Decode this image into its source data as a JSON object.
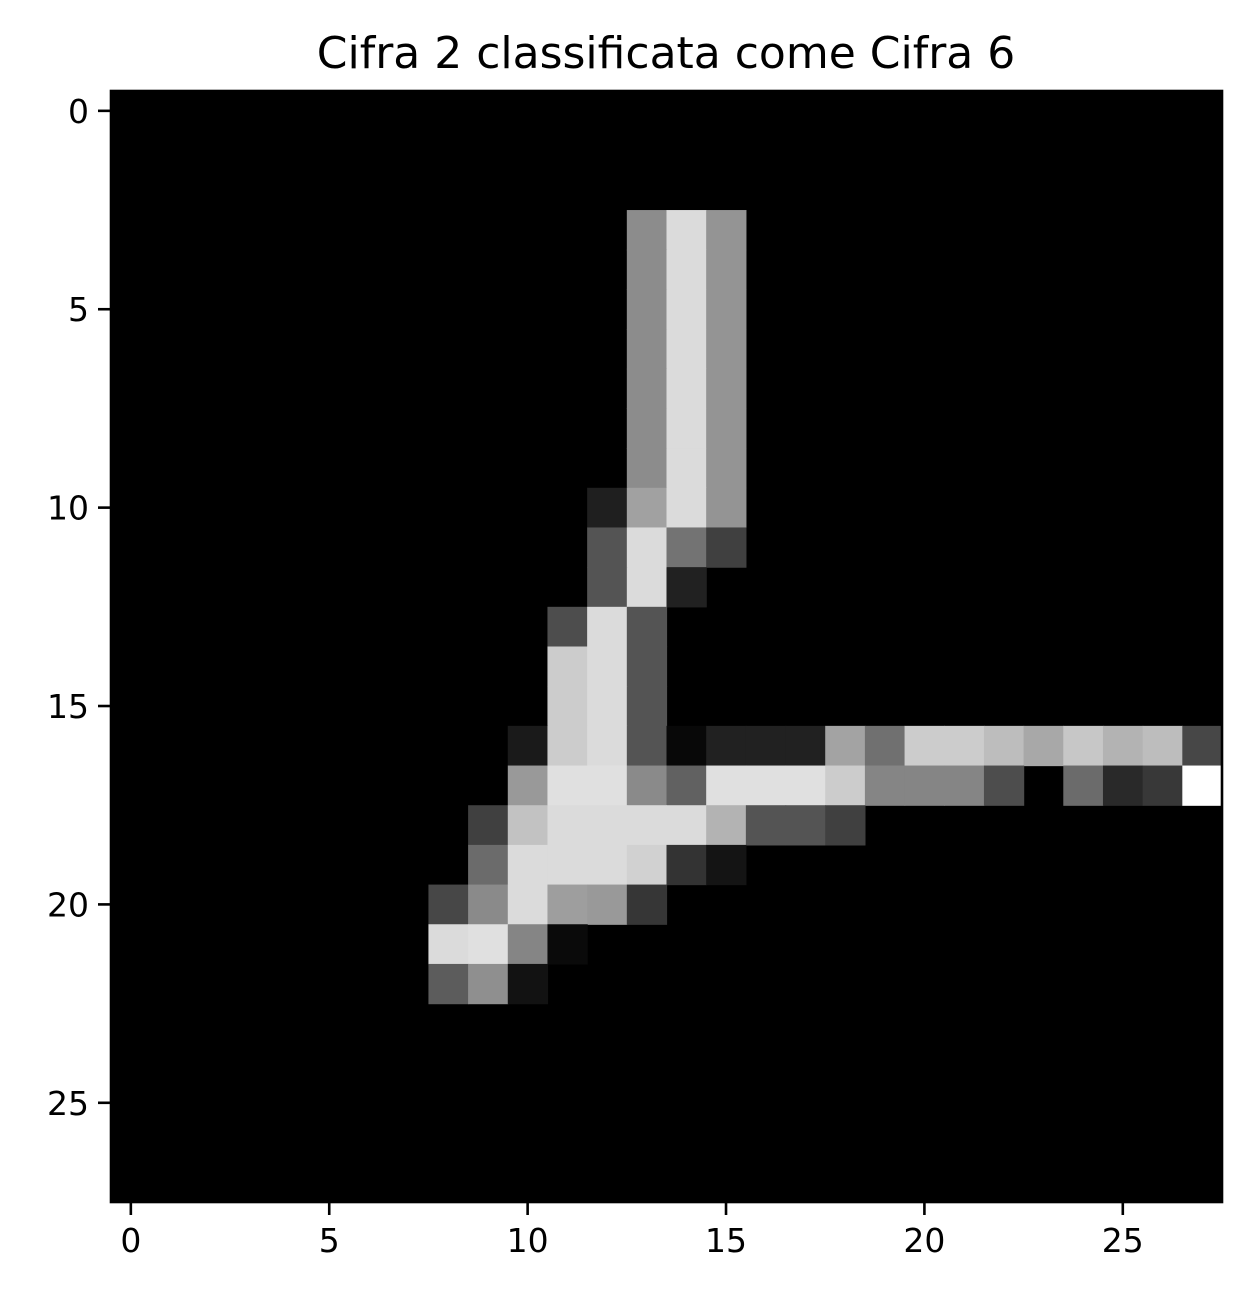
{
  "chart_data": {
    "type": "heatmap",
    "title": "Cifra 2 classificata come Cifra 6",
    "xlabel": "",
    "ylabel": "",
    "colormap": "gray",
    "value_range": [
      0,
      1
    ],
    "xlim": [
      -0.5,
      27.5
    ],
    "ylim": [
      27.5,
      -0.5
    ],
    "x_ticks": [
      0,
      5,
      10,
      15,
      20,
      25
    ],
    "y_ticks": [
      0,
      5,
      10,
      15,
      20,
      25
    ],
    "x_tick_labels": [
      "0",
      "5",
      "10",
      "15",
      "20",
      "25"
    ],
    "y_tick_labels": [
      "0",
      "5",
      "10",
      "15",
      "20",
      "25"
    ],
    "grid": false,
    "shape": [
      28,
      28
    ],
    "nonzero_pixels": [
      {
        "row": 3,
        "col": 13,
        "value": 0.55
      },
      {
        "row": 3,
        "col": 14,
        "value": 0.86
      },
      {
        "row": 3,
        "col": 15,
        "value": 0.58
      },
      {
        "row": 4,
        "col": 13,
        "value": 0.55
      },
      {
        "row": 4,
        "col": 14,
        "value": 0.86
      },
      {
        "row": 4,
        "col": 15,
        "value": 0.58
      },
      {
        "row": 5,
        "col": 13,
        "value": 0.55
      },
      {
        "row": 5,
        "col": 14,
        "value": 0.86
      },
      {
        "row": 5,
        "col": 15,
        "value": 0.58
      },
      {
        "row": 6,
        "col": 13,
        "value": 0.55
      },
      {
        "row": 6,
        "col": 14,
        "value": 0.86
      },
      {
        "row": 6,
        "col": 15,
        "value": 0.58
      },
      {
        "row": 7,
        "col": 13,
        "value": 0.55
      },
      {
        "row": 7,
        "col": 14,
        "value": 0.86
      },
      {
        "row": 7,
        "col": 15,
        "value": 0.58
      },
      {
        "row": 8,
        "col": 13,
        "value": 0.55
      },
      {
        "row": 8,
        "col": 14,
        "value": 0.86
      },
      {
        "row": 8,
        "col": 15,
        "value": 0.58
      },
      {
        "row": 9,
        "col": 13,
        "value": 0.55
      },
      {
        "row": 9,
        "col": 14,
        "value": 0.86
      },
      {
        "row": 9,
        "col": 15,
        "value": 0.58
      },
      {
        "row": 10,
        "col": 12,
        "value": 0.12
      },
      {
        "row": 10,
        "col": 13,
        "value": 0.63
      },
      {
        "row": 10,
        "col": 14,
        "value": 0.86
      },
      {
        "row": 10,
        "col": 15,
        "value": 0.58
      },
      {
        "row": 11,
        "col": 12,
        "value": 0.33
      },
      {
        "row": 11,
        "col": 13,
        "value": 0.86
      },
      {
        "row": 11,
        "col": 14,
        "value": 0.45
      },
      {
        "row": 11,
        "col": 15,
        "value": 0.25
      },
      {
        "row": 12,
        "col": 12,
        "value": 0.33
      },
      {
        "row": 12,
        "col": 13,
        "value": 0.86
      },
      {
        "row": 12,
        "col": 14,
        "value": 0.13
      },
      {
        "row": 13,
        "col": 11,
        "value": 0.3
      },
      {
        "row": 13,
        "col": 12,
        "value": 0.86
      },
      {
        "row": 13,
        "col": 13,
        "value": 0.33
      },
      {
        "row": 14,
        "col": 11,
        "value": 0.8
      },
      {
        "row": 14,
        "col": 12,
        "value": 0.86
      },
      {
        "row": 14,
        "col": 13,
        "value": 0.33
      },
      {
        "row": 15,
        "col": 11,
        "value": 0.8
      },
      {
        "row": 15,
        "col": 12,
        "value": 0.86
      },
      {
        "row": 15,
        "col": 13,
        "value": 0.33
      },
      {
        "row": 16,
        "col": 10,
        "value": 0.1
      },
      {
        "row": 16,
        "col": 11,
        "value": 0.8
      },
      {
        "row": 16,
        "col": 12,
        "value": 0.86
      },
      {
        "row": 16,
        "col": 13,
        "value": 0.33
      },
      {
        "row": 16,
        "col": 14,
        "value": 0.03
      },
      {
        "row": 16,
        "col": 15,
        "value": 0.13
      },
      {
        "row": 16,
        "col": 16,
        "value": 0.13
      },
      {
        "row": 16,
        "col": 17,
        "value": 0.13
      },
      {
        "row": 16,
        "col": 18,
        "value": 0.64
      },
      {
        "row": 16,
        "col": 19,
        "value": 0.44
      },
      {
        "row": 16,
        "col": 20,
        "value": 0.8
      },
      {
        "row": 16,
        "col": 21,
        "value": 0.8
      },
      {
        "row": 16,
        "col": 22,
        "value": 0.74
      },
      {
        "row": 16,
        "col": 23,
        "value": 0.66
      },
      {
        "row": 16,
        "col": 24,
        "value": 0.78
      },
      {
        "row": 16,
        "col": 25,
        "value": 0.7
      },
      {
        "row": 16,
        "col": 26,
        "value": 0.74
      },
      {
        "row": 16,
        "col": 27,
        "value": 0.28
      },
      {
        "row": 17,
        "col": 10,
        "value": 0.6
      },
      {
        "row": 17,
        "col": 11,
        "value": 0.88
      },
      {
        "row": 17,
        "col": 12,
        "value": 0.88
      },
      {
        "row": 17,
        "col": 13,
        "value": 0.54
      },
      {
        "row": 17,
        "col": 14,
        "value": 0.38
      },
      {
        "row": 17,
        "col": 15,
        "value": 0.88
      },
      {
        "row": 17,
        "col": 16,
        "value": 0.88
      },
      {
        "row": 17,
        "col": 17,
        "value": 0.88
      },
      {
        "row": 17,
        "col": 18,
        "value": 0.8
      },
      {
        "row": 17,
        "col": 19,
        "value": 0.52
      },
      {
        "row": 17,
        "col": 20,
        "value": 0.52
      },
      {
        "row": 17,
        "col": 21,
        "value": 0.52
      },
      {
        "row": 17,
        "col": 22,
        "value": 0.3
      },
      {
        "row": 17,
        "col": 24,
        "value": 0.42
      },
      {
        "row": 17,
        "col": 25,
        "value": 0.16
      },
      {
        "row": 17,
        "col": 26,
        "value": 0.22
      },
      {
        "row": 17,
        "col": 27,
        "value": 1.0
      },
      {
        "row": 18,
        "col": 9,
        "value": 0.25
      },
      {
        "row": 18,
        "col": 10,
        "value": 0.76
      },
      {
        "row": 18,
        "col": 11,
        "value": 0.86
      },
      {
        "row": 18,
        "col": 12,
        "value": 0.86
      },
      {
        "row": 18,
        "col": 13,
        "value": 0.86
      },
      {
        "row": 18,
        "col": 14,
        "value": 0.86
      },
      {
        "row": 18,
        "col": 15,
        "value": 0.7
      },
      {
        "row": 18,
        "col": 16,
        "value": 0.33
      },
      {
        "row": 18,
        "col": 17,
        "value": 0.33
      },
      {
        "row": 18,
        "col": 18,
        "value": 0.25
      },
      {
        "row": 19,
        "col": 9,
        "value": 0.42
      },
      {
        "row": 19,
        "col": 10,
        "value": 0.86
      },
      {
        "row": 19,
        "col": 11,
        "value": 0.86
      },
      {
        "row": 19,
        "col": 12,
        "value": 0.86
      },
      {
        "row": 19,
        "col": 13,
        "value": 0.82
      },
      {
        "row": 19,
        "col": 14,
        "value": 0.2
      },
      {
        "row": 19,
        "col": 15,
        "value": 0.08
      },
      {
        "row": 20,
        "col": 8,
        "value": 0.28
      },
      {
        "row": 20,
        "col": 9,
        "value": 0.54
      },
      {
        "row": 20,
        "col": 10,
        "value": 0.86
      },
      {
        "row": 20,
        "col": 11,
        "value": 0.62
      },
      {
        "row": 20,
        "col": 12,
        "value": 0.6
      },
      {
        "row": 20,
        "col": 13,
        "value": 0.21
      },
      {
        "row": 21,
        "col": 8,
        "value": 0.86
      },
      {
        "row": 21,
        "col": 9,
        "value": 0.88
      },
      {
        "row": 21,
        "col": 10,
        "value": 0.52
      },
      {
        "row": 21,
        "col": 11,
        "value": 0.04
      },
      {
        "row": 22,
        "col": 8,
        "value": 0.36
      },
      {
        "row": 22,
        "col": 9,
        "value": 0.56
      },
      {
        "row": 22,
        "col": 10,
        "value": 0.07
      }
    ]
  }
}
